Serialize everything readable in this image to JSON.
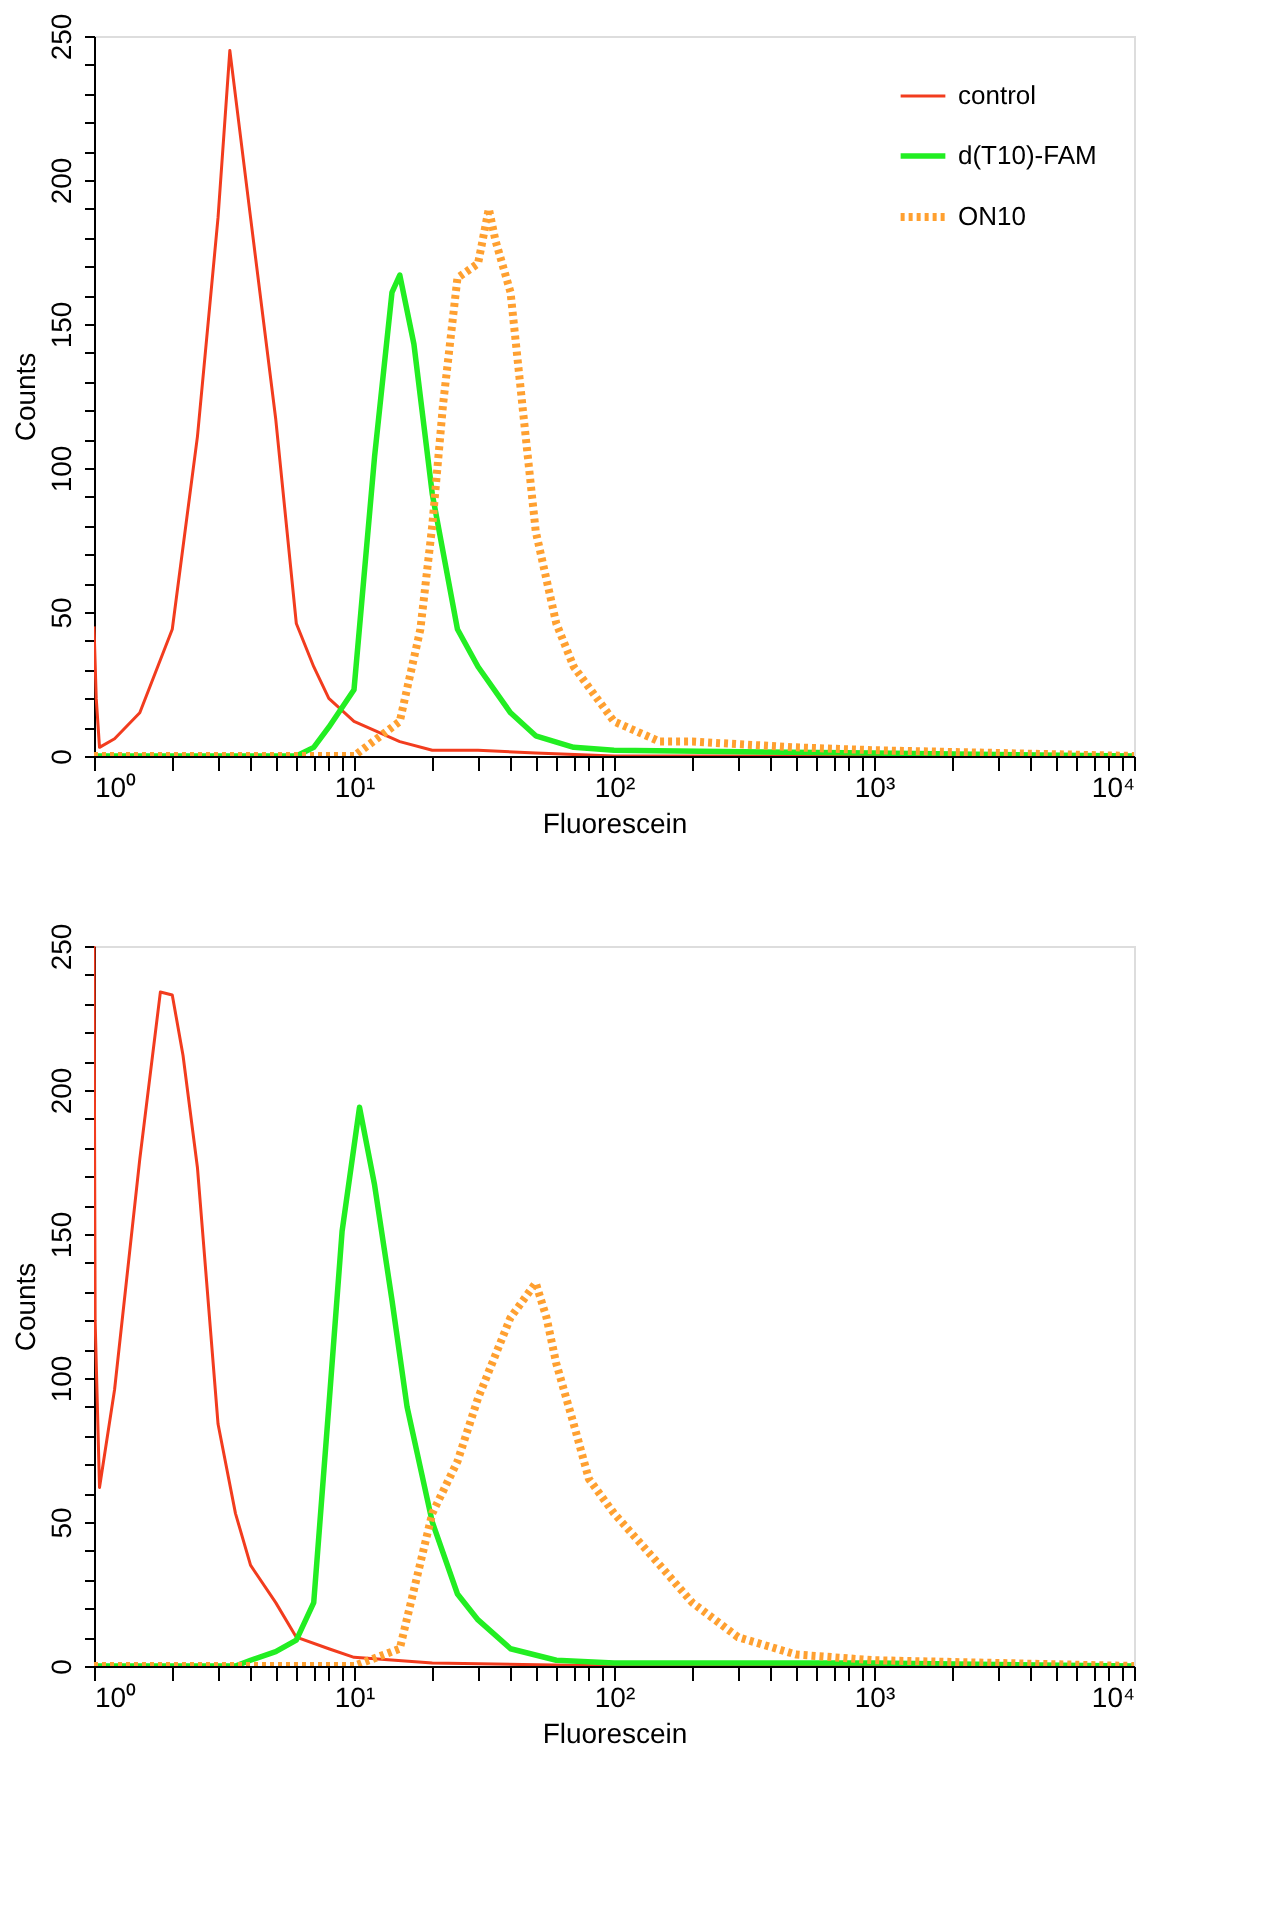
{
  "chart_data": [
    {
      "type": "line",
      "xlabel": "Fluorescein",
      "ylabel": "Counts",
      "log": "x",
      "grid": false,
      "legend": "top right",
      "xlim": [
        1,
        10000
      ],
      "ylim": [
        0,
        250
      ],
      "xticks": [
        {
          "value": 1,
          "label": "10⁰"
        },
        {
          "value": 2,
          "label": null
        },
        {
          "value": 3,
          "label": null
        },
        {
          "value": 4,
          "label": null
        },
        {
          "value": 5,
          "label": null
        },
        {
          "value": 6,
          "label": null
        },
        {
          "value": 7,
          "label": null
        },
        {
          "value": 8,
          "label": null
        },
        {
          "value": 9,
          "label": null
        },
        {
          "value": 10,
          "label": "10¹"
        },
        {
          "value": 20,
          "label": null
        },
        {
          "value": 30,
          "label": null
        },
        {
          "value": 40,
          "label": null
        },
        {
          "value": 50,
          "label": null
        },
        {
          "value": 60,
          "label": null
        },
        {
          "value": 70,
          "label": null
        },
        {
          "value": 80,
          "label": null
        },
        {
          "value": 90,
          "label": null
        },
        {
          "value": 100,
          "label": "10²"
        },
        {
          "value": 200,
          "label": null
        },
        {
          "value": 300,
          "label": null
        },
        {
          "value": 400,
          "label": null
        },
        {
          "value": 500,
          "label": null
        },
        {
          "value": 600,
          "label": null
        },
        {
          "value": 700,
          "label": null
        },
        {
          "value": 800,
          "label": null
        },
        {
          "value": 900,
          "label": null
        },
        {
          "value": 1000,
          "label": "10³"
        },
        {
          "value": 2000,
          "label": null
        },
        {
          "value": 3000,
          "label": null
        },
        {
          "value": 4000,
          "label": null
        },
        {
          "value": 5000,
          "label": null
        },
        {
          "value": 6000,
          "label": null
        },
        {
          "value": 7000,
          "label": null
        },
        {
          "value": 8000,
          "label": null
        },
        {
          "value": 9000,
          "label": null
        },
        {
          "value": 10000,
          "label": "10⁴"
        }
      ],
      "yticks": [
        0,
        {
          "value": 10,
          "label": null
        },
        {
          "value": 20,
          "label": null
        },
        {
          "value": 30,
          "label": null
        },
        {
          "value": 40,
          "label": null
        },
        50,
        {
          "value": 60,
          "label": null
        },
        {
          "value": 70,
          "label": null
        },
        {
          "value": 80,
          "label": null
        },
        {
          "value": 90,
          "label": null
        },
        100,
        {
          "value": 110,
          "label": null
        },
        {
          "value": 120,
          "label": null
        },
        {
          "value": 130,
          "label": null
        },
        {
          "value": 140,
          "label": null
        },
        150,
        {
          "value": 160,
          "label": null
        },
        {
          "value": 170,
          "label": null
        },
        {
          "value": 180,
          "label": null
        },
        {
          "value": 190,
          "label": null
        },
        200,
        {
          "value": 210,
          "label": null
        },
        {
          "value": 220,
          "label": null
        },
        {
          "value": 230,
          "label": null
        },
        {
          "value": 240,
          "label": null
        },
        250
      ],
      "series": [
        {
          "name": "control",
          "color": "#f23c1e",
          "line_style": "solid",
          "x": [
            1,
            1.02,
            1.05,
            1.2,
            1.5,
            2,
            2.5,
            3,
            3.33,
            4,
            5,
            6,
            7,
            8,
            10,
            15,
            20,
            30,
            50,
            100,
            1000,
            10000
          ],
          "values": [
            45,
            20,
            3,
            6,
            15,
            44,
            111,
            187,
            245,
            187,
            117,
            46,
            31,
            20,
            12,
            5,
            2,
            2,
            1,
            0,
            0,
            0
          ]
        },
        {
          "name": "d(T10)-FAM",
          "color": "#22ee22",
          "line_style": "solid",
          "x": [
            1,
            6,
            7,
            8,
            10,
            12,
            14,
            15,
            17,
            20,
            25,
            30,
            40,
            50,
            70,
            100,
            1000,
            10000
          ],
          "values": [
            0,
            0,
            3,
            10,
            23,
            104,
            161,
            167,
            143,
            91,
            44,
            31,
            15,
            7,
            3,
            2,
            1,
            0
          ]
        },
        {
          "name": "ON10",
          "color": "#ffa030",
          "line_style": "dotted",
          "x": [
            1,
            10,
            15,
            18,
            20,
            22,
            25,
            30,
            33,
            35,
            40,
            45,
            50,
            60,
            70,
            100,
            150,
            200,
            500,
            1000,
            10000
          ],
          "values": [
            0,
            0,
            12,
            44,
            80,
            122,
            166,
            171,
            190,
            179,
            161,
            117,
            78,
            46,
            31,
            12,
            5,
            5,
            3,
            2,
            0
          ]
        }
      ]
    },
    {
      "type": "line",
      "xlabel": "Fluorescein",
      "ylabel": "Counts",
      "log": "x",
      "grid": false,
      "legend": "top right",
      "xlim": [
        1,
        10000
      ],
      "ylim": [
        0,
        250
      ],
      "xticks": [
        {
          "value": 1,
          "label": "10⁰"
        },
        {
          "value": 2,
          "label": null
        },
        {
          "value": 3,
          "label": null
        },
        {
          "value": 4,
          "label": null
        },
        {
          "value": 5,
          "label": null
        },
        {
          "value": 6,
          "label": null
        },
        {
          "value": 7,
          "label": null
        },
        {
          "value": 8,
          "label": null
        },
        {
          "value": 9,
          "label": null
        },
        {
          "value": 10,
          "label": "10¹"
        },
        {
          "value": 20,
          "label": null
        },
        {
          "value": 30,
          "label": null
        },
        {
          "value": 40,
          "label": null
        },
        {
          "value": 50,
          "label": null
        },
        {
          "value": 60,
          "label": null
        },
        {
          "value": 70,
          "label": null
        },
        {
          "value": 80,
          "label": null
        },
        {
          "value": 90,
          "label": null
        },
        {
          "value": 100,
          "label": "10²"
        },
        {
          "value": 200,
          "label": null
        },
        {
          "value": 300,
          "label": null
        },
        {
          "value": 400,
          "label": null
        },
        {
          "value": 500,
          "label": null
        },
        {
          "value": 600,
          "label": null
        },
        {
          "value": 700,
          "label": null
        },
        {
          "value": 800,
          "label": null
        },
        {
          "value": 900,
          "label": null
        },
        {
          "value": 1000,
          "label": "10³"
        },
        {
          "value": 2000,
          "label": null
        },
        {
          "value": 3000,
          "label": null
        },
        {
          "value": 4000,
          "label": null
        },
        {
          "value": 5000,
          "label": null
        },
        {
          "value": 6000,
          "label": null
        },
        {
          "value": 7000,
          "label": null
        },
        {
          "value": 8000,
          "label": null
        },
        {
          "value": 9000,
          "label": null
        },
        {
          "value": 10000,
          "label": "10⁴"
        }
      ],
      "yticks": [
        0,
        {
          "value": 10,
          "label": null
        },
        {
          "value": 20,
          "label": null
        },
        {
          "value": 30,
          "label": null
        },
        {
          "value": 40,
          "label": null
        },
        50,
        {
          "value": 60,
          "label": null
        },
        {
          "value": 70,
          "label": null
        },
        {
          "value": 80,
          "label": null
        },
        {
          "value": 90,
          "label": null
        },
        100,
        {
          "value": 110,
          "label": null
        },
        {
          "value": 120,
          "label": null
        },
        {
          "value": 130,
          "label": null
        },
        {
          "value": 140,
          "label": null
        },
        150,
        {
          "value": 160,
          "label": null
        },
        {
          "value": 170,
          "label": null
        },
        {
          "value": 180,
          "label": null
        },
        {
          "value": 190,
          "label": null
        },
        200,
        {
          "value": 210,
          "label": null
        },
        {
          "value": 220,
          "label": null
        },
        {
          "value": 230,
          "label": null
        },
        {
          "value": 240,
          "label": null
        },
        250
      ],
      "series": [
        {
          "name": "control",
          "color": "#f23c1e",
          "line_style": "solid",
          "x": [
            1,
            1.01,
            1.05,
            1.2,
            1.5,
            1.8,
            2,
            2.2,
            2.5,
            3,
            3.5,
            4,
            5,
            6,
            8,
            10,
            20,
            100,
            1000,
            10000
          ],
          "values": [
            250,
            120,
            62,
            96,
            176,
            234,
            233,
            212,
            173,
            84,
            53,
            35,
            22,
            10,
            6,
            3,
            1,
            0,
            0,
            0
          ]
        },
        {
          "name": "d(T10)-FAM",
          "color": "#22ee22",
          "line_style": "solid",
          "x": [
            1,
            3.5,
            4,
            5,
            6,
            7,
            8,
            9,
            10.5,
            12,
            14,
            16,
            20,
            25,
            30,
            40,
            60,
            100,
            1000,
            10000
          ],
          "values": [
            0,
            0,
            2,
            5,
            9,
            22,
            90,
            151,
            194,
            167,
            127,
            90,
            50,
            25,
            16,
            6,
            2,
            1,
            1,
            0
          ]
        },
        {
          "name": "ON10",
          "color": "#ffa030",
          "line_style": "dotted",
          "x": [
            1,
            10,
            15,
            20,
            25,
            30,
            35,
            40,
            50,
            55,
            60,
            70,
            80,
            100,
            150,
            200,
            300,
            500,
            1000,
            10000
          ],
          "values": [
            0,
            0,
            6,
            53,
            71,
            93,
            108,
            121,
            133,
            121,
            105,
            84,
            65,
            53,
            35,
            22,
            10,
            4,
            2,
            0
          ]
        }
      ]
    }
  ]
}
